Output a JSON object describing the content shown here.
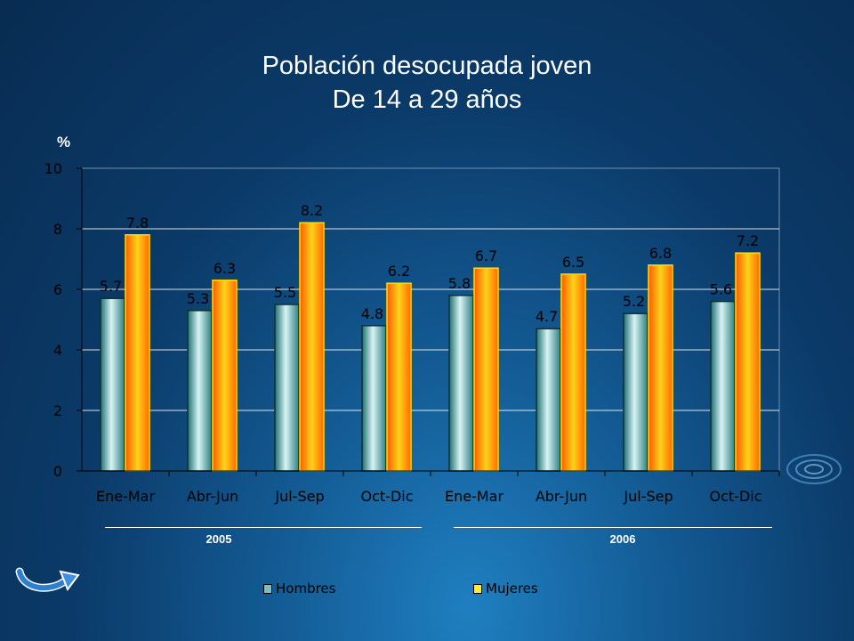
{
  "slide": {
    "title_line1": "Población desocupada joven",
    "title_line2": "De 14 a 29 años",
    "unit_label": "%",
    "year_groups": [
      "2005",
      "2006"
    ],
    "nav_icon": "return-arrow-icon"
  },
  "chart_data": {
    "type": "bar",
    "title": "Población desocupada joven De 14 a 29 años",
    "ylabel": "%",
    "xlabel": "",
    "ylim": [
      0,
      10
    ],
    "yticks": [
      0,
      2,
      4,
      6,
      8,
      10
    ],
    "grid": true,
    "legend_position": "bottom",
    "categories": [
      "Ene-Mar",
      "Abr-Jun",
      "Jul-Sep",
      "Oct-Dic",
      "Ene-Mar",
      "Abr-Jun",
      "Jul-Sep",
      "Oct-Dic"
    ],
    "groups": [
      {
        "label": "2005",
        "categories": [
          "Ene-Mar",
          "Abr-Jun",
          "Jul-Sep",
          "Oct-Dic"
        ]
      },
      {
        "label": "2006",
        "categories": [
          "Ene-Mar",
          "Abr-Jun",
          "Jul-Sep",
          "Oct-Dic"
        ]
      }
    ],
    "series": [
      {
        "name": "Hombres",
        "color": "#6fb4b6",
        "values": [
          5.7,
          5.3,
          5.5,
          4.8,
          5.8,
          4.7,
          5.2,
          5.6
        ]
      },
      {
        "name": "Mujeres",
        "color": "#ff8a00",
        "values": [
          7.8,
          6.3,
          8.2,
          6.2,
          6.7,
          6.5,
          6.8,
          7.2
        ]
      }
    ],
    "data_labels": [
      [
        "5.7",
        "5.3",
        "5.5",
        "4.8",
        "5.8",
        "4.7",
        "5.2",
        "5.6"
      ],
      [
        "7.8",
        "6.3",
        "8.2",
        "6.2",
        "6.7",
        "6.5",
        "6.8",
        "7.2"
      ]
    ]
  }
}
